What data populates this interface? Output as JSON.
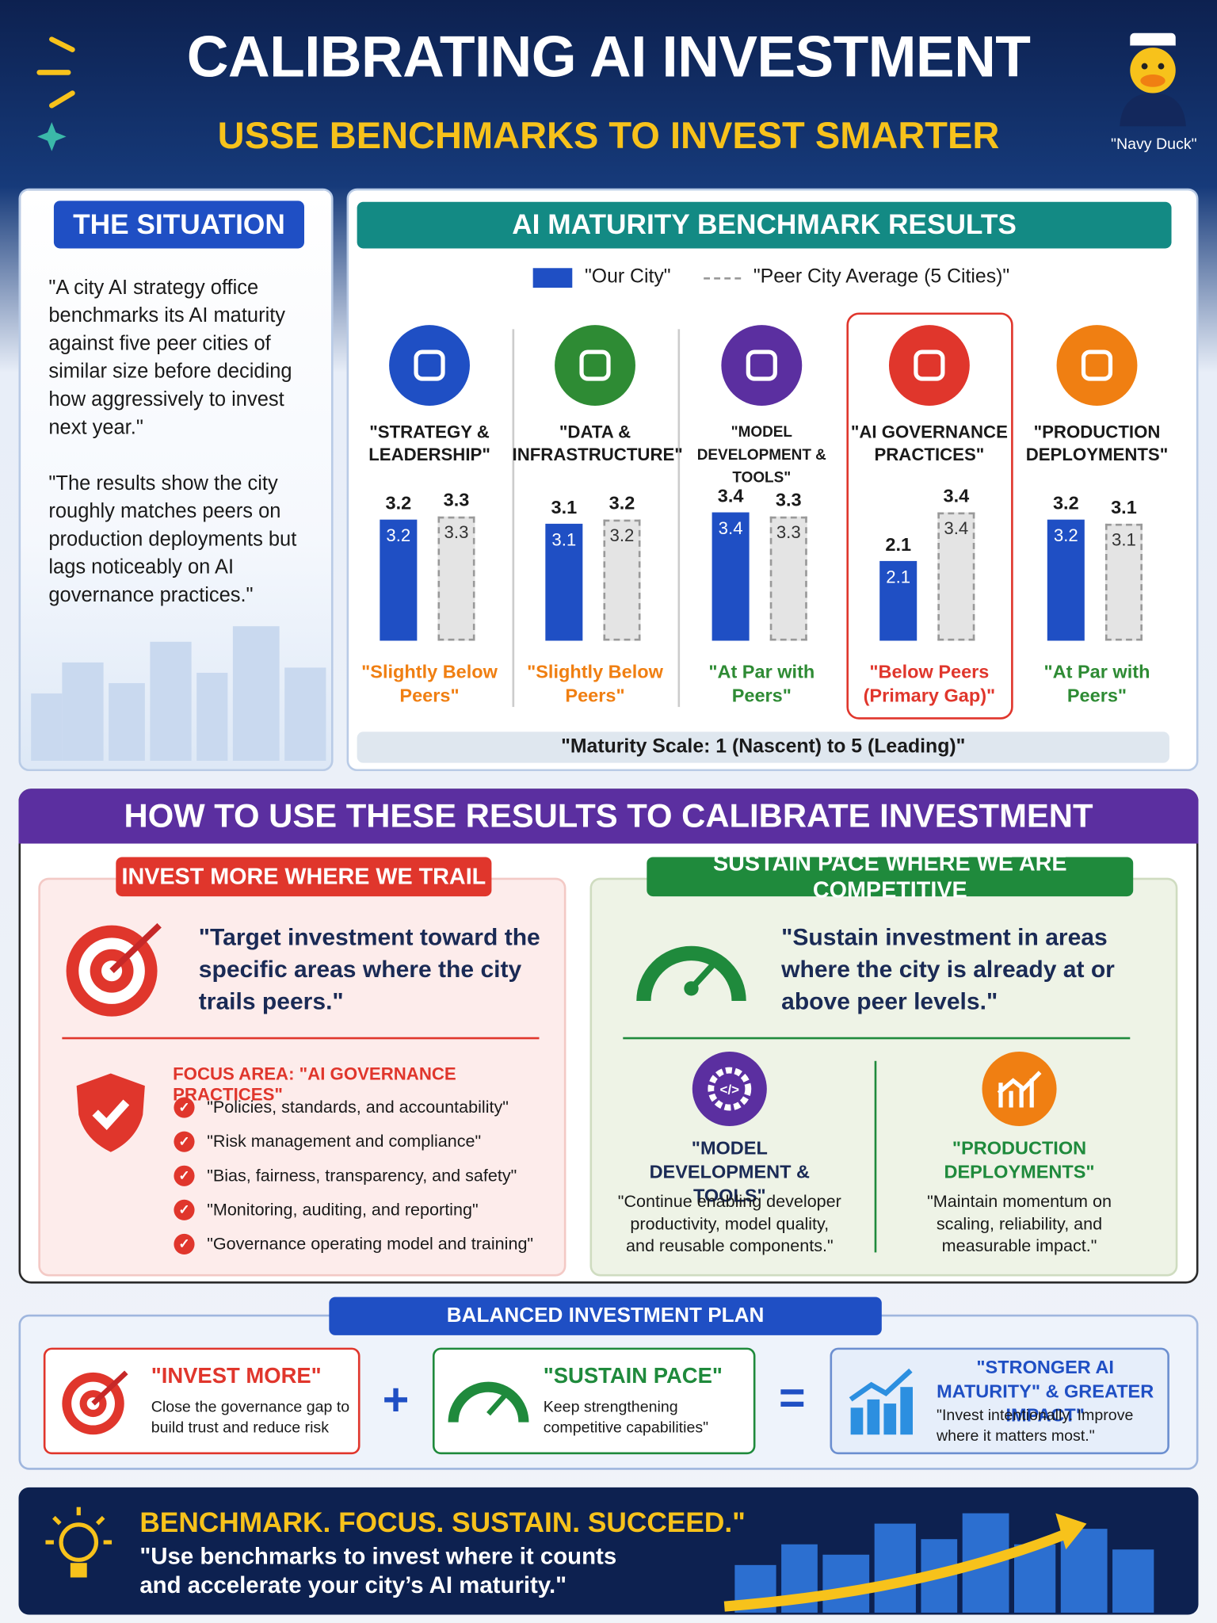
{
  "header": {
    "title": "CALIBRATING AI INVESTMENT",
    "subtitle": "USSE BENCHMARKS TO INVEST SMARTER",
    "mascot": "\"Navy Duck\""
  },
  "situation": {
    "title": "THE SITUATION",
    "paragraphs": [
      "\"A city AI strategy office benchmarks its AI maturity against five peer cities of similar size before deciding how aggressively to invest next year.\"",
      "\"The results show the city roughly matches peers on production deployments but lags noticeably on AI governance practices.\""
    ]
  },
  "chart_data": {
    "type": "bar",
    "title": "AI MATURITY BENCHMARK RESULTS",
    "categories": [
      "\"STRATEGY & LEADERSHIP\"",
      "\"DATA & INFRASTRUCTURE\"",
      "\"MODEL DEVELOPMENT & TOOLS\"",
      "\"AI GOVERNANCE PRACTICES\"",
      "\"PRODUCTION DEPLOYMENTS\""
    ],
    "series": [
      {
        "name": "\"Our City\"",
        "color": "#1f4fc4",
        "values": [
          3.2,
          3.1,
          3.4,
          2.1,
          3.2
        ]
      },
      {
        "name": "\"Peer City Average (5 Cities)\"",
        "color": "#e4e4e4",
        "values": [
          3.3,
          3.2,
          3.3,
          3.4,
          3.1
        ]
      }
    ],
    "status_labels": [
      "\"Slightly Below Peers\"",
      "\"Slightly Below Peers\"",
      "\"At Par with Peers\"",
      "\"Below Peers (Primary Gap)\"",
      "\"At Par with Peers\""
    ],
    "status_colors": [
      "#f07f12",
      "#f07f12",
      "#2e8b34",
      "#e0362c",
      "#2e8b34"
    ],
    "icon_colors": [
      "#1f4fc4",
      "#2e8b34",
      "#5b2fa0",
      "#e0362c",
      "#f07f12"
    ],
    "footnote": "\"Maturity Scale: 1 (Nascent) to 5 (Leading)\""
  },
  "how_to": {
    "title": "HOW TO USE THESE RESULTS TO CALIBRATE INVESTMENT",
    "invest_more": {
      "title": "INVEST MORE WHERE WE TRAIL",
      "quote": "\"Target investment toward the specific areas where the city trails peers.\"",
      "focus_label": "FOCUS AREA: \"AI GOVERNANCE PRACTICES\"",
      "items": [
        "\"Policies, standards, and accountability\"",
        "\"Risk management and compliance\"",
        "\"Bias, fairness, transparency, and safety\"",
        "\"Monitoring, auditing, and reporting\"",
        "\"Governance operating model and training\""
      ]
    },
    "sustain": {
      "title": "SUSTAIN PACE WHERE WE ARE COMPETITIVE",
      "quote": "\"Sustain investment in areas where the city is already at or above peer levels.\"",
      "items": [
        {
          "title": "\"MODEL DEVELOPMENT & TOOLS\"",
          "text": "\"Continue enabling developer productivity, model quality, and reusable components.\""
        },
        {
          "title": "\"PRODUCTION DEPLOYMENTS\"",
          "text": "\"Maintain momentum on scaling, reliability, and measurable impact.\""
        }
      ]
    }
  },
  "plan": {
    "title": "BALANCED INVESTMENT PLAN",
    "parts": [
      {
        "title": "\"INVEST MORE\"",
        "text": "Close the governance gap to build trust and reduce risk"
      },
      {
        "title": "\"SUSTAIN PACE\"",
        "text": "Keep strengthening competitive capabilities\""
      },
      {
        "title": "\"STRONGER AI MATURITY\" & GREATER IMPACT\"",
        "text": "\"Invest intentionally. Improve where it matters most.\""
      }
    ]
  },
  "footer": {
    "headline": "BENCHMARK. FOCUS. SUSTAIN. SUCCEED.\"",
    "text": "\"Use benchmarks to invest where it counts and accelerate your city’s AI maturity.\""
  }
}
